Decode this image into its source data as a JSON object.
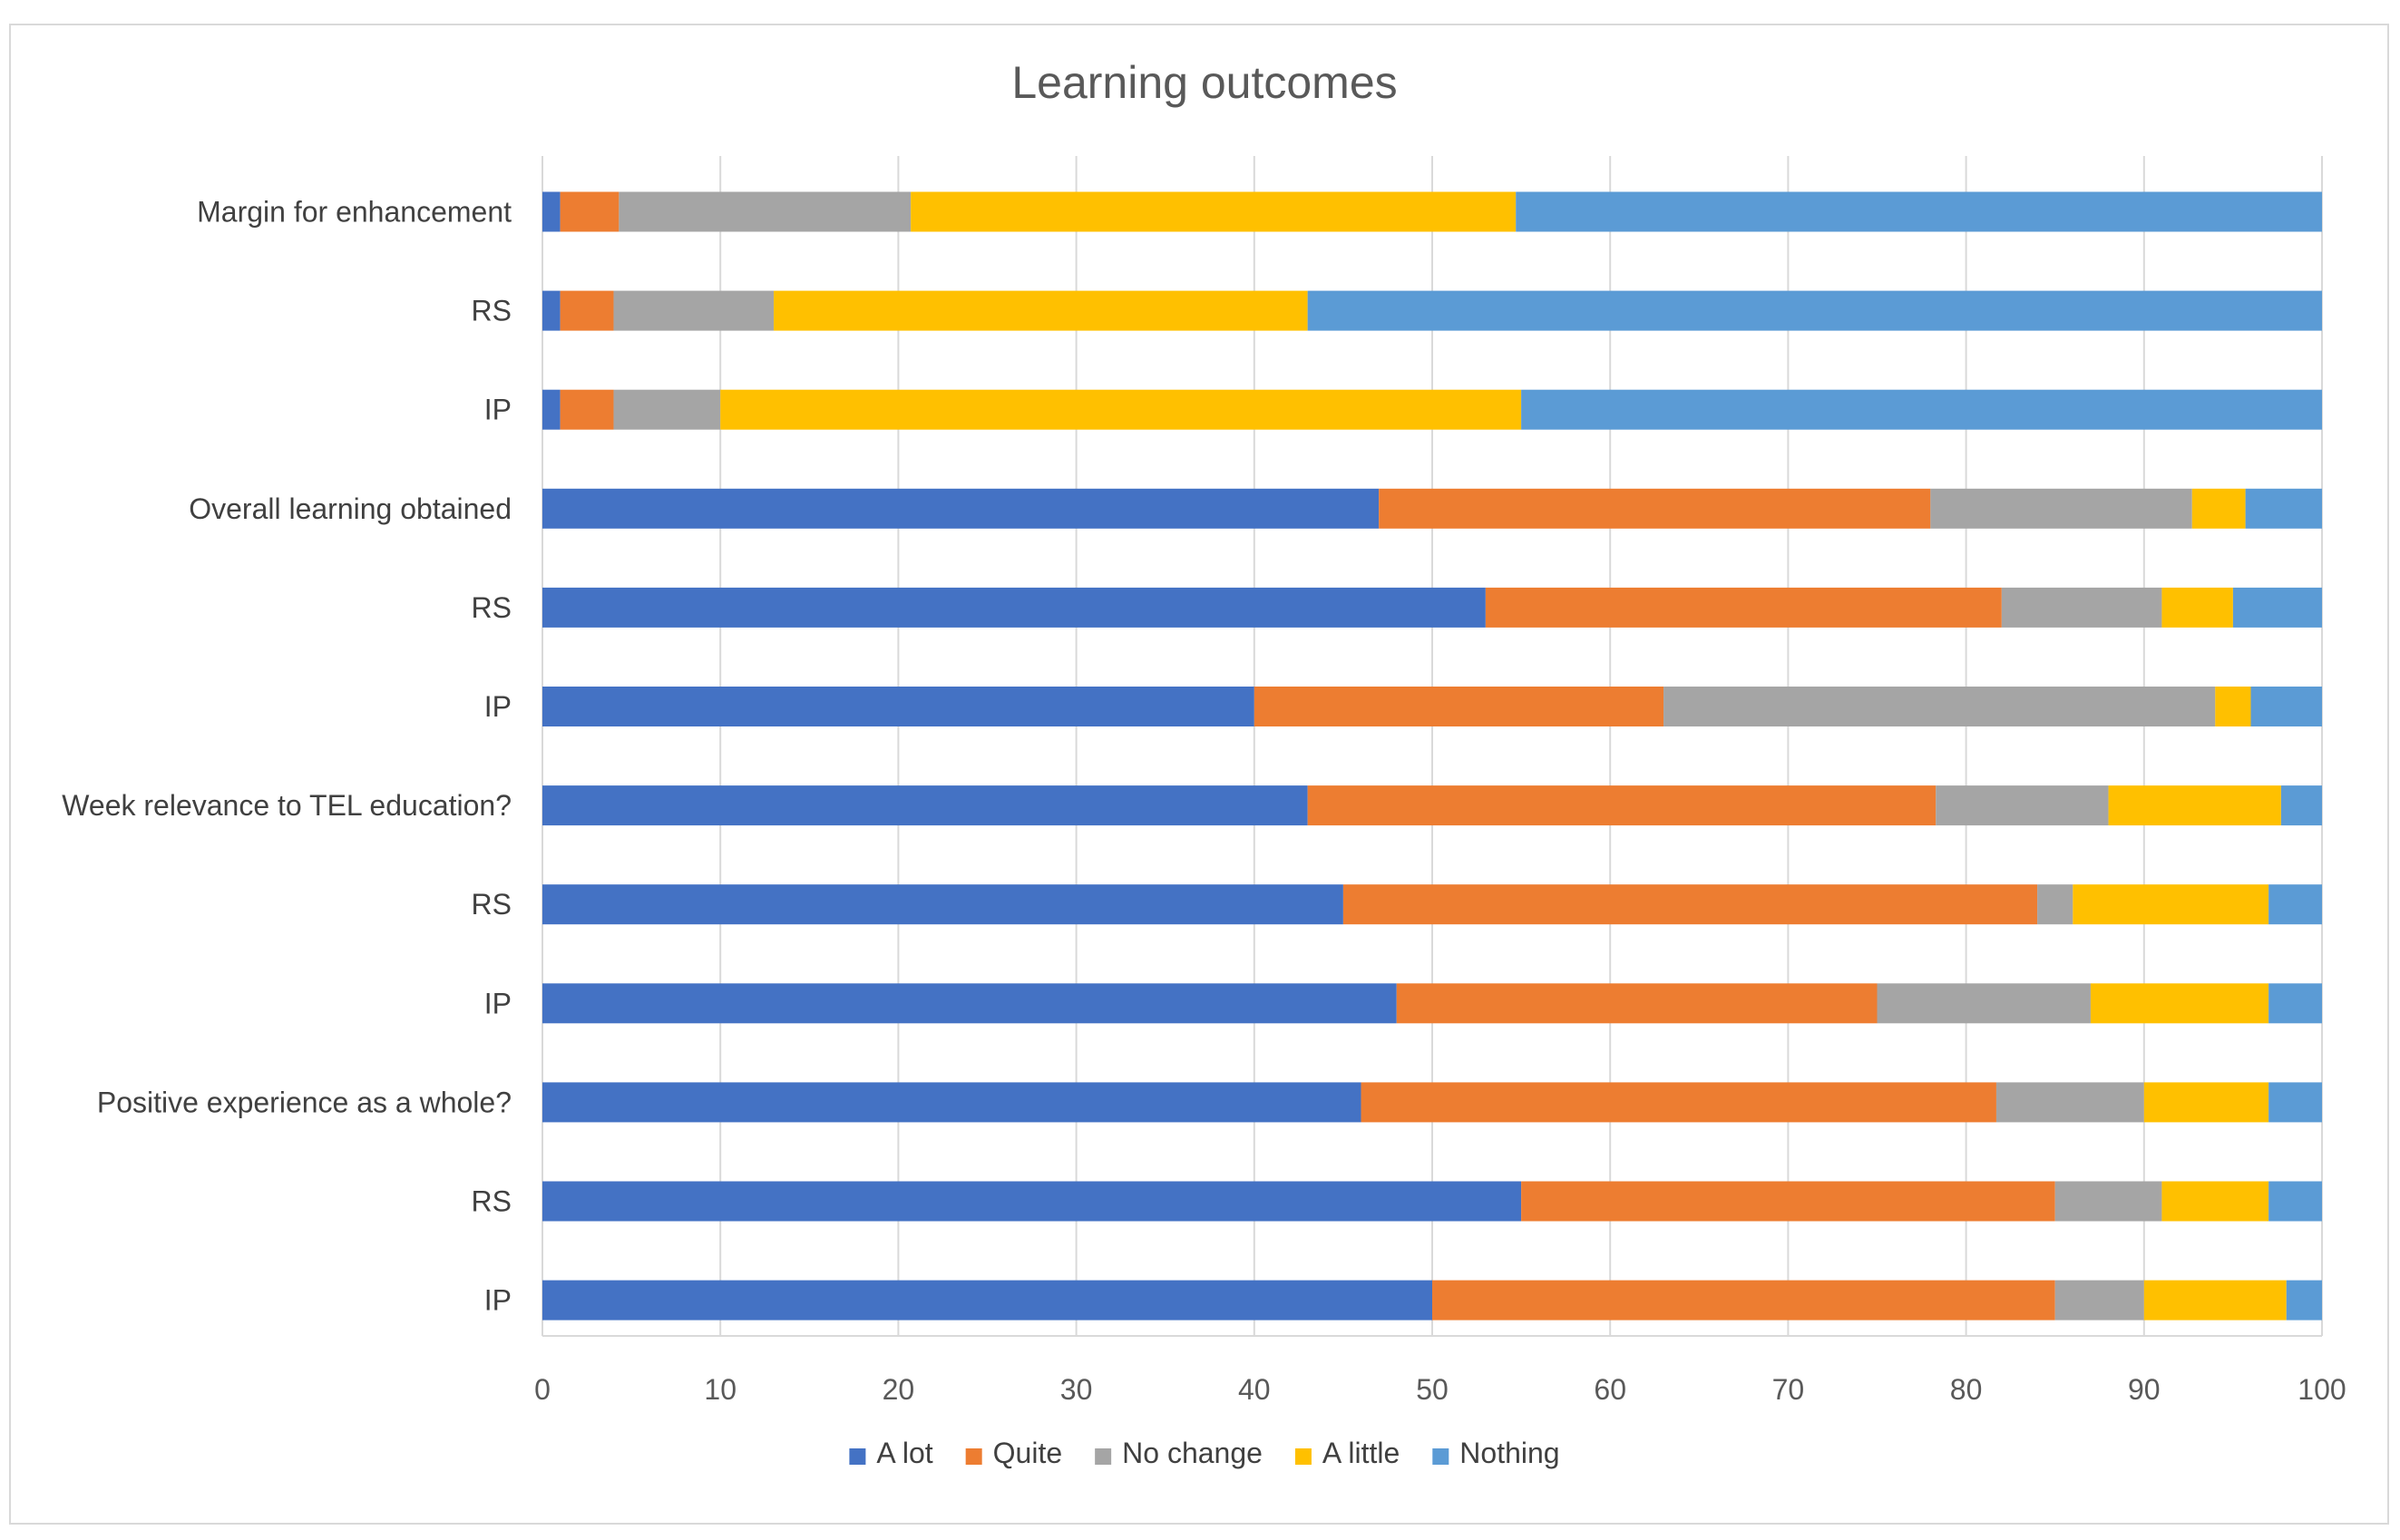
{
  "chart_data": {
    "type": "bar",
    "orientation": "horizontal",
    "stacked": true,
    "title": "Learning outcomes",
    "xlabel": "",
    "ylabel": "",
    "xlim": [
      0,
      100
    ],
    "xticks": [
      0,
      10,
      20,
      30,
      40,
      50,
      60,
      70,
      80,
      90,
      100
    ],
    "grid": true,
    "legend_position": "bottom",
    "categories": [
      "Margin for enhancement",
      "RS",
      "IP",
      "Overall learning obtained",
      "RS",
      "IP",
      "Week relevance to TEL education?",
      "RS",
      "IP",
      "Positive experience as a whole?",
      "RS",
      "IP"
    ],
    "series": [
      {
        "name": "A lot",
        "color": "#4472C4",
        "values": [
          1,
          1,
          1,
          47,
          53,
          40,
          43,
          45,
          48,
          46,
          55,
          50
        ]
      },
      {
        "name": "Quite",
        "color": "#ED7D31",
        "values": [
          3.3,
          3,
          3,
          31,
          29,
          23,
          35.3,
          39,
          27,
          35.7,
          30,
          35
        ]
      },
      {
        "name": "No change",
        "color": "#A5A5A5",
        "values": [
          16.4,
          9,
          6,
          14.7,
          9,
          31,
          9.7,
          2,
          12,
          8.3,
          6,
          5
        ]
      },
      {
        "name": "A little",
        "color": "#FFC000",
        "values": [
          34,
          30,
          45,
          3,
          4,
          2,
          9.7,
          11,
          10,
          7,
          6,
          8
        ]
      },
      {
        "name": "Nothing",
        "color": "#5B9BD5",
        "values": [
          45.3,
          57,
          45,
          4.3,
          5,
          4,
          2.3,
          3,
          3,
          3,
          3,
          2
        ]
      }
    ]
  }
}
